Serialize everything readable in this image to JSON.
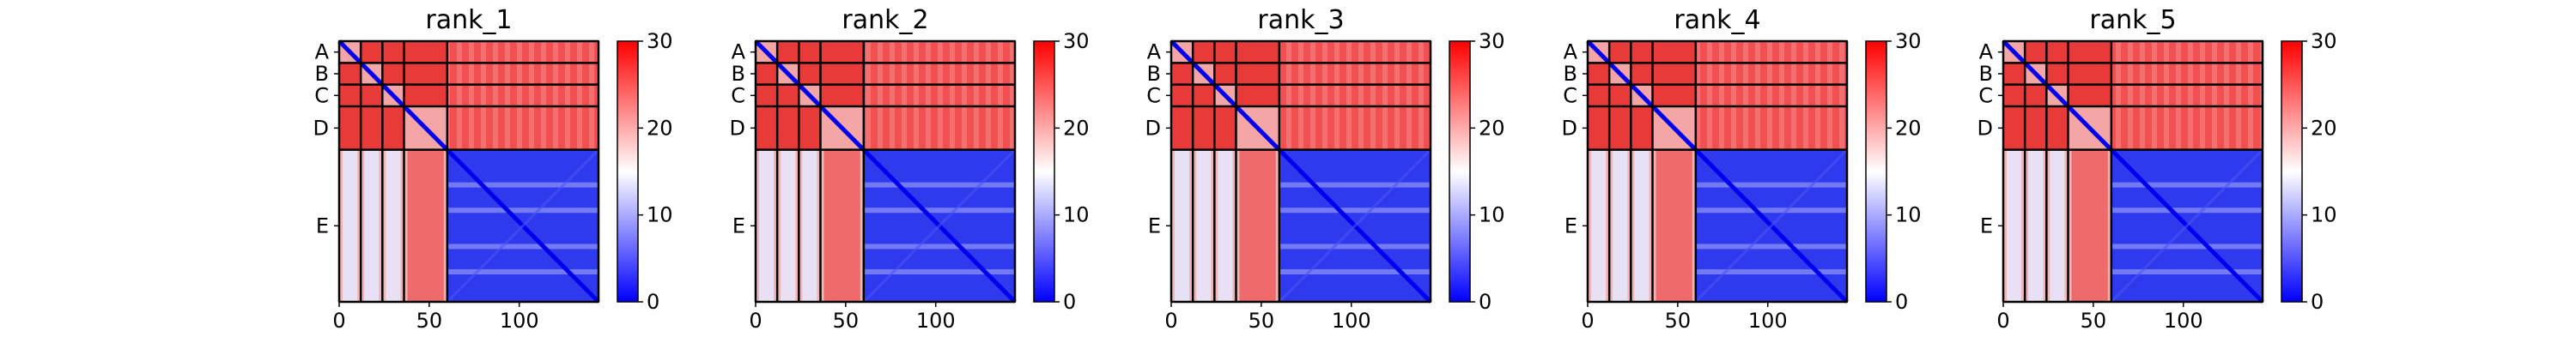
{
  "chart_data": [
    {
      "type": "heatmap",
      "title": "rank_1",
      "chain_labels": [
        "A",
        "B",
        "C",
        "D",
        "E"
      ],
      "x_ticks": [
        "0",
        "50",
        "100"
      ],
      "colorbar": {
        "ticks": [
          "0",
          "10",
          "20",
          "30"
        ],
        "range": [
          0,
          30
        ],
        "colors": [
          "#0000ff",
          "#ffffff",
          "#ff0000"
        ]
      }
    },
    {
      "type": "heatmap",
      "title": "rank_2",
      "chain_labels": [
        "A",
        "B",
        "C",
        "D",
        "E"
      ],
      "x_ticks": [
        "0",
        "50",
        "100"
      ],
      "colorbar": {
        "ticks": [
          "0",
          "10",
          "20",
          "30"
        ],
        "range": [
          0,
          30
        ],
        "colors": [
          "#0000ff",
          "#ffffff",
          "#ff0000"
        ]
      }
    },
    {
      "type": "heatmap",
      "title": "rank_3",
      "chain_labels": [
        "A",
        "B",
        "C",
        "D",
        "E"
      ],
      "x_ticks": [
        "0",
        "50",
        "100"
      ],
      "colorbar": {
        "ticks": [
          "0",
          "10",
          "20",
          "30"
        ],
        "range": [
          0,
          30
        ],
        "colors": [
          "#0000ff",
          "#ffffff",
          "#ff0000"
        ]
      }
    },
    {
      "type": "heatmap",
      "title": "rank_4",
      "chain_labels": [
        "A",
        "B",
        "C",
        "D",
        "E"
      ],
      "x_ticks": [
        "0",
        "50",
        "100"
      ],
      "colorbar": {
        "ticks": [
          "0",
          "10",
          "20",
          "30"
        ],
        "range": [
          0,
          30
        ],
        "colors": [
          "#0000ff",
          "#ffffff",
          "#ff0000"
        ]
      }
    },
    {
      "type": "heatmap",
      "title": "rank_5",
      "chain_labels": [
        "A",
        "B",
        "C",
        "D",
        "E"
      ],
      "x_ticks": [
        "0",
        "50",
        "100"
      ],
      "colorbar": {
        "ticks": [
          "0",
          "10",
          "20",
          "30"
        ],
        "range": [
          0,
          30
        ],
        "colors": [
          "#0000ff",
          "#ffffff",
          "#ff0000"
        ]
      }
    }
  ]
}
